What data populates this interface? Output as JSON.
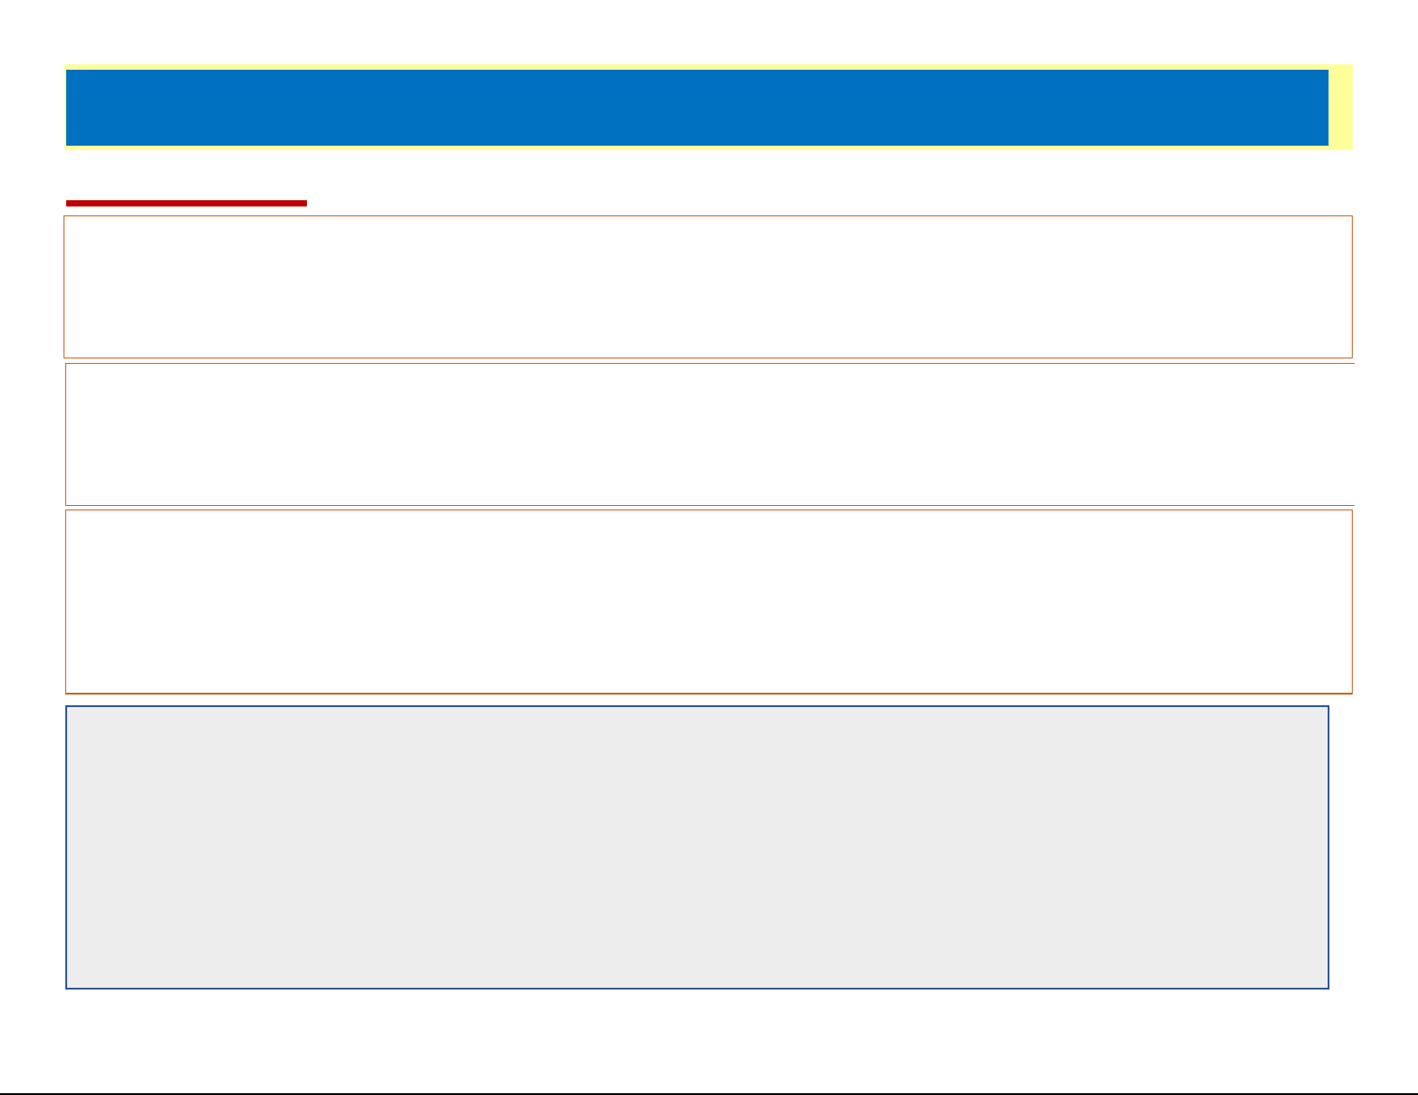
{
  "colors": {
    "header_frame": "#ffff99",
    "header_bar": "#0070c0",
    "accent_bar": "#c00000",
    "panel_border": "#d0601a",
    "info_panel_bg": "#ededed",
    "info_panel_border": "#2f5597"
  }
}
